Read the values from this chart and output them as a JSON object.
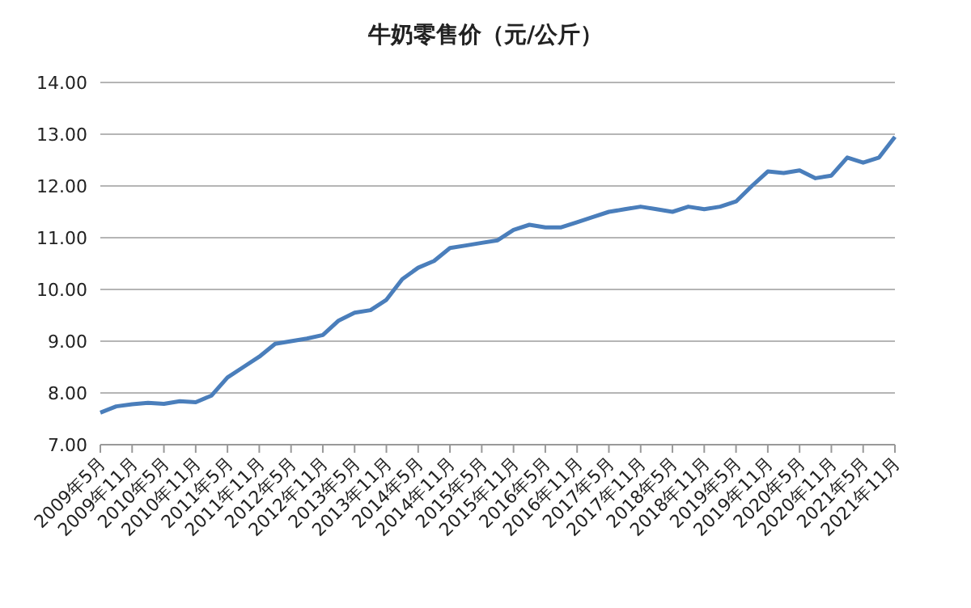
{
  "chart_data": {
    "type": "line",
    "title": "牛奶零售价（元/公斤）",
    "categories": [
      "2009年5月",
      null,
      "2009年11月",
      null,
      "2010年5月",
      null,
      "2010年11月",
      null,
      "2011年5月",
      null,
      "2011年11月",
      null,
      "2012年5月",
      null,
      "2012年11月",
      null,
      "2013年5月",
      null,
      "2013年11月",
      null,
      "2014年5月",
      null,
      "2014年11月",
      null,
      "2015年5月",
      null,
      "2015年11月",
      null,
      "2016年5月",
      null,
      "2016年11月",
      null,
      "2017年5月",
      null,
      "2017年11月",
      null,
      "2018年5月",
      null,
      "2018年11月",
      null,
      "2019年5月",
      null,
      "2019年11月",
      null,
      "2020年5月",
      null,
      "2020年11月",
      null,
      "2021年5月",
      null,
      "2021年11月"
    ],
    "series": [
      {
        "color": "#4a7ebb",
        "values": [
          7.62,
          7.74,
          7.78,
          7.81,
          7.79,
          7.84,
          7.82,
          7.95,
          8.3,
          8.5,
          8.7,
          8.95,
          9.0,
          9.05,
          9.12,
          9.4,
          9.55,
          9.6,
          9.8,
          10.2,
          10.42,
          10.55,
          10.8,
          10.85,
          10.9,
          10.95,
          11.15,
          11.25,
          11.2,
          11.2,
          11.3,
          11.4,
          11.5,
          11.55,
          11.6,
          11.55,
          11.5,
          11.6,
          11.55,
          11.6,
          11.7,
          12.0,
          12.28,
          12.25,
          12.3,
          12.15,
          12.2,
          12.55,
          12.45,
          12.55,
          12.95
        ]
      }
    ],
    "ylim": [
      7,
      14
    ],
    "yticks": [
      {
        "value": 7,
        "label": "7.00"
      },
      {
        "value": 8,
        "label": "8.00"
      },
      {
        "value": 9,
        "label": "9.00"
      },
      {
        "value": 10,
        "label": "10.00"
      },
      {
        "value": 11,
        "label": "11.00"
      },
      {
        "value": 12,
        "label": "12.00"
      },
      {
        "value": 13,
        "label": "13.00"
      },
      {
        "value": 14,
        "label": "14.00"
      }
    ],
    "grid": "y",
    "marker": "none",
    "line_style": "solid"
  }
}
